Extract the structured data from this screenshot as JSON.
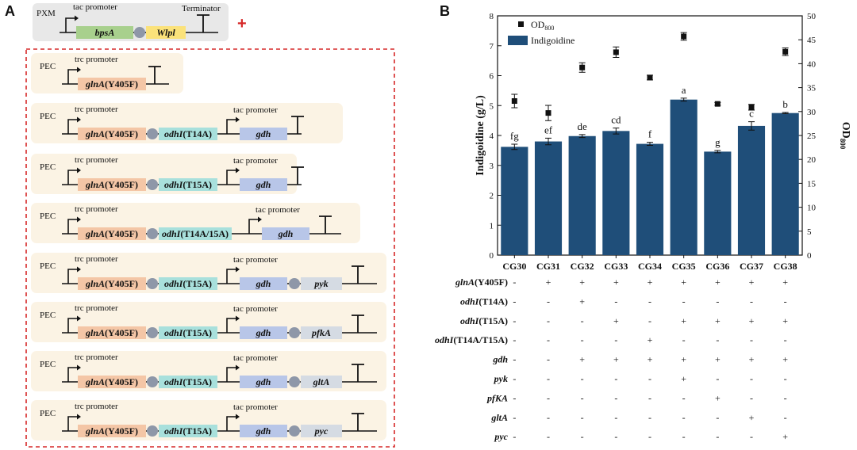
{
  "panel_a": {
    "label": "A",
    "plus_sign": "+",
    "pxm": {
      "name": "PXM",
      "promoter": "tac promoter",
      "terminator_label": "Terminator",
      "gene1": "bpsA",
      "gene2": "Wlpl"
    },
    "constructs": [
      {
        "name": "PEC",
        "promoter1": "trc promoter",
        "gene1": "glnA",
        "mut1": "(Y405F)"
      },
      {
        "name": "PEC",
        "promoter1": "trc promoter",
        "gene1": "glnA",
        "mut1": "(Y405F)",
        "gene2": "odhI",
        "mut2": "(T14A)",
        "promoter2": "tac promoter",
        "gene3": "gdh"
      },
      {
        "name": "PEC",
        "promoter1": "trc promoter",
        "gene1": "glnA",
        "mut1": "(Y405F)",
        "gene2": "odhI",
        "mut2": "(T15A)",
        "promoter2": "tac promoter",
        "gene3": "gdh"
      },
      {
        "name": "PEC",
        "promoter1": "trc promoter",
        "gene1": "glnA",
        "mut1": "(Y405F)",
        "gene2": "odhI",
        "mut2": "(T14A/15A)",
        "promoter2": "tac promoter",
        "gene3": "gdh"
      },
      {
        "name": "PEC",
        "promoter1": "trc promoter",
        "gene1": "glnA",
        "mut1": "(Y405F)",
        "gene2": "odhI",
        "mut2": "(T15A)",
        "promoter2": "tac promoter",
        "gene3": "gdh",
        "gene4": "pyk"
      },
      {
        "name": "PEC",
        "promoter1": "trc promoter",
        "gene1": "glnA",
        "mut1": "(Y405F)",
        "gene2": "odhI",
        "mut2": "(T15A)",
        "promoter2": "tac promoter",
        "gene3": "gdh",
        "gene4": "pfkA"
      },
      {
        "name": "PEC",
        "promoter1": "trc promoter",
        "gene1": "glnA",
        "mut1": "(Y405F)",
        "gene2": "odhI",
        "mut2": "(T15A)",
        "promoter2": "tac promoter",
        "gene3": "gdh",
        "gene4": "gltA"
      },
      {
        "name": "PEC",
        "promoter1": "trc promoter",
        "gene1": "glnA",
        "mut1": "(Y405F)",
        "gene2": "odhI",
        "mut2": "(T15A)",
        "promoter2": "tac promoter",
        "gene3": "gdh",
        "gene4": "pyc"
      }
    ],
    "colors": {
      "pxm_bg": "#e8e8e8",
      "pec_bg": "#fbf3e4",
      "dash_box": "#d62828",
      "glnA": "#f4c6a6",
      "odhI": "#a8e0dc",
      "gdh": "#b8c6e8",
      "extra": "#d5dbe3",
      "bpsA": "#a8d08d",
      "Wlpl": "#fbe27a",
      "rbs": "#8e97a8"
    }
  },
  "panel_b": {
    "label": "B",
    "colors": {
      "bar": "#1f4e79",
      "marker": "#111111"
    },
    "chart_data": {
      "type": "bar",
      "categories": [
        "CG30",
        "CG31",
        "CG32",
        "CG33",
        "CG34",
        "CG35",
        "CG36",
        "CG37",
        "CG38"
      ],
      "series": [
        {
          "name": "Indigoidine",
          "axis": "left",
          "values": [
            3.62,
            3.8,
            3.98,
            4.15,
            3.72,
            5.2,
            3.46,
            4.32,
            4.75
          ],
          "errors": [
            0.09,
            0.11,
            0.05,
            0.1,
            0.05,
            0.05,
            0.04,
            0.14,
            0.02
          ],
          "labels": [
            "fg",
            "ef",
            "de",
            "cd",
            "f",
            "a",
            "g",
            "c",
            "b"
          ]
        },
        {
          "name": "OD",
          "name_sub": "800",
          "axis": "right",
          "values": [
            32.2,
            29.7,
            39.2,
            42.4,
            37.1,
            45.7,
            31.6,
            30.9,
            42.5
          ],
          "errors": [
            1.4,
            1.6,
            1.0,
            1.1,
            0.5,
            0.8,
            0.3,
            0.6,
            0.8
          ]
        }
      ],
      "ylabel_left": "Indigoidine (g/L)",
      "ylabel_right": "OD",
      "ylabel_right_sub": "800",
      "ylim_left": [
        0,
        8
      ],
      "yticks_left": [
        "0",
        "1",
        "2",
        "3",
        "4",
        "5",
        "6",
        "7",
        "8"
      ],
      "ylim_right": [
        0,
        50
      ],
      "yticks_right": [
        "0",
        "5",
        "10",
        "15",
        "20",
        "25",
        "30",
        "35",
        "40",
        "45",
        "50"
      ],
      "legend": "top-left",
      "grid": false
    },
    "table": {
      "rows": [
        {
          "label": "glnA",
          "label_suffix": "(Y405F)",
          "cells": [
            "-",
            "+",
            "+",
            "+",
            "+",
            "+",
            "+",
            "+",
            "+"
          ]
        },
        {
          "label": "odhI",
          "label_suffix": "(T14A)",
          "cells": [
            "-",
            "-",
            "+",
            "-",
            "-",
            "-",
            "-",
            "-",
            "-"
          ]
        },
        {
          "label": "odhI",
          "label_suffix": "(T15A)",
          "cells": [
            "-",
            "-",
            "-",
            "+",
            "-",
            "+",
            "+",
            "+",
            "+"
          ]
        },
        {
          "label": "odhI",
          "label_suffix": "(T14A/T15A)",
          "cells": [
            "-",
            "-",
            "-",
            "-",
            "+",
            "-",
            "-",
            "-",
            "-"
          ]
        },
        {
          "label": "gdh",
          "label_suffix": "",
          "cells": [
            "-",
            "-",
            "+",
            "+",
            "+",
            "+",
            "+",
            "+",
            "+"
          ]
        },
        {
          "label": "pyk",
          "label_suffix": "",
          "cells": [
            "-",
            "-",
            "-",
            "-",
            "-",
            "+",
            "-",
            "-",
            "-"
          ]
        },
        {
          "label": "pfKA",
          "label_suffix": "",
          "cells": [
            "-",
            "-",
            "-",
            "-",
            "-",
            "-",
            "+",
            "-",
            "-"
          ]
        },
        {
          "label": "gltA",
          "label_suffix": "",
          "cells": [
            "-",
            "-",
            "-",
            "-",
            "-",
            "-",
            "-",
            "+",
            "-"
          ]
        },
        {
          "label": "pyc",
          "label_suffix": "",
          "cells": [
            "-",
            "-",
            "-",
            "-",
            "-",
            "-",
            "-",
            "-",
            "+"
          ]
        }
      ]
    }
  }
}
